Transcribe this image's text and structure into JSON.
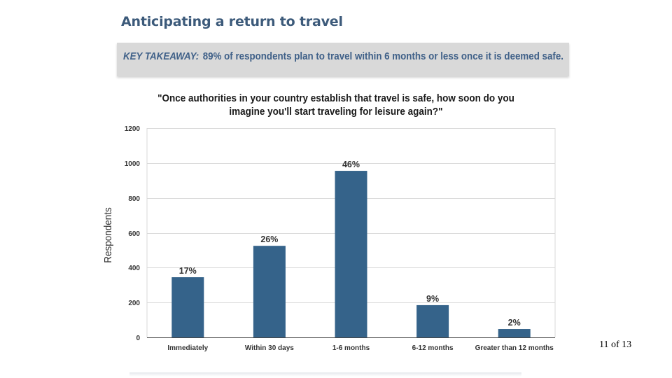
{
  "slide": {
    "title": "Anticipating a return to travel",
    "takeaway_label": "KEY TAKEAWAY:",
    "takeaway_text": "89% of respondents plan to travel within 6 months or less once it is deemed safe.",
    "page_current": "11",
    "page_of": "of",
    "page_total": "13"
  },
  "colors": {
    "bar": "#35638a",
    "title": "#3c5a7a",
    "takeaway": "#3f6088",
    "takeaway_bg": "#d9d9d9",
    "grid": "#d9d9d9"
  },
  "chart_data": {
    "type": "bar",
    "title_lines": [
      "\"Once authorities in your country establish that travel is safe, how soon do you",
      "imagine you'll start traveling for leisure again?\""
    ],
    "ylabel": "Respondents",
    "xlabel": "",
    "ylim": [
      0,
      1200
    ],
    "yticks": [
      0,
      200,
      400,
      600,
      800,
      1000,
      1200
    ],
    "grid": true,
    "categories": [
      "Immediately",
      "Within 30 days",
      "1-6 months",
      "6-12 months",
      "Greater than 12 months"
    ],
    "values": [
      345,
      525,
      955,
      185,
      48
    ],
    "data_labels": [
      "17%",
      "26%",
      "46%",
      "9%",
      "2%"
    ]
  }
}
